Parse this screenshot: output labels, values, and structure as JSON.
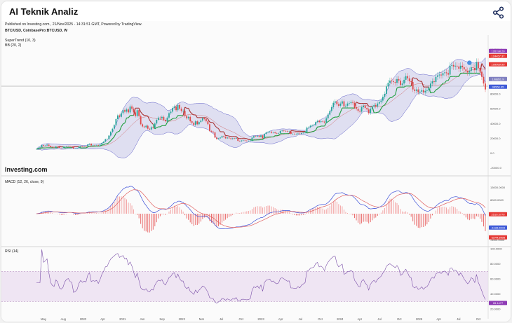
{
  "header": {
    "title": "AI Teknik Analiz",
    "share_icon": "share-icon"
  },
  "chart_meta": {
    "published": "Published on Investing.com , 21/Nov/2025 - 14:31:51 GMT, Powered by TradingView.",
    "symbol": "BTC/USD, CoinbasePro:BTCUSD, W",
    "indicator1": "SuperTrend (10, 3)",
    "indicator2": "BB (20, 2)",
    "logo": "Investing.com"
  },
  "chart_data": [
    {
      "type": "line",
      "panel": "price",
      "x_labels": [
        "May",
        "Aug",
        "2020",
        "Apr",
        "2021",
        "Jun",
        "Sep",
        "2022",
        "Mar",
        "Jul",
        "Oct",
        "2023",
        "Apr",
        "Jul",
        "Oct",
        "2024",
        "Apr",
        "Jul",
        "Oct",
        "2025",
        "Apr",
        "Jul",
        "Oct"
      ],
      "y_tick_labels": [
        "140000.0",
        "120000.0",
        "100000.0",
        "80000.0",
        "60000.0",
        "40000.0",
        "20000.0",
        "0.0",
        "-20000.0"
      ],
      "ylim": [
        -25000,
        150000
      ],
      "last_value_labels": [
        "126198.29",
        "124457.37",
        "109999.99",
        "108851.9",
        "98560.95"
      ],
      "close_weekly": [
        5600,
        7200,
        7800,
        10800,
        9800,
        10400,
        11500,
        9900,
        8200,
        7600,
        7400,
        9000,
        8600,
        7200,
        6900,
        7300,
        8700,
        9400,
        9700,
        9100,
        8900,
        6300,
        6500,
        7000,
        8600,
        9600,
        9100,
        9500,
        9300,
        11700,
        12800,
        10500,
        10900,
        10700,
        11000,
        10200,
        11600,
        13800,
        15500,
        18800,
        19100,
        23800,
        28900,
        33000,
        38000,
        46000,
        51000,
        49000,
        54000,
        58000,
        56000,
        59000,
        55000,
        63000,
        60000,
        55000,
        50000,
        58000,
        50000,
        39000,
        36000,
        35000,
        37000,
        33000,
        32000,
        35000,
        34000,
        40000,
        45000,
        48000,
        47000,
        49000,
        45000,
        43000,
        48000,
        54000,
        56000,
        61000,
        63000,
        58000,
        65000,
        60000,
        57000,
        57000,
        50000,
        47000,
        49000,
        43000,
        41000,
        38000,
        43000,
        39000,
        42000,
        44000,
        47000,
        46000,
        43000,
        39000,
        30000,
        29000,
        28000,
        21000,
        19000,
        20000,
        21000,
        23000,
        22000,
        20000,
        21000,
        20000,
        19000,
        20000,
        19500,
        20500,
        16500,
        16000,
        17000,
        17100,
        16800,
        16500,
        16600,
        17000,
        21000,
        23000,
        22500,
        23500,
        22000,
        24000,
        20000,
        26000,
        28000,
        28500,
        29000,
        27500,
        28000,
        27000,
        26500,
        27000,
        30000,
        30500,
        30000,
        29500,
        29000,
        29200,
        26000,
        26000,
        25800,
        25800,
        26500,
        26000,
        27000,
        27500,
        28000,
        34500,
        35000,
        37000,
        37500,
        38000,
        42000,
        43500,
        42000,
        43000,
        42500,
        41500,
        47000,
        52000,
        57000,
        62000,
        68000,
        70000,
        66000,
        64000,
        67000,
        70000,
        63000,
        64000,
        67000,
        67500,
        69000,
        68000,
        62000,
        60000,
        57000,
        56000,
        62000,
        64000,
        61000,
        59000,
        54000,
        60000,
        63000,
        65000,
        63000,
        67000,
        69000,
        71000,
        76000,
        80000,
        90000,
        95000,
        98000,
        97000,
        96000,
        95000,
        100000,
        98000,
        92000,
        94000,
        99000,
        104000,
        101000,
        97000,
        96000,
        86000,
        84000,
        86000,
        82000,
        83000,
        85000,
        82000,
        84000,
        85000,
        88000,
        94000,
        97000,
        96000,
        103000,
        105000,
        106000,
        105000,
        108000,
        109000,
        108000,
        106000,
        118000,
        119000,
        117000,
        118000,
        117000,
        114000,
        118000,
        116000,
        113000,
        111000,
        109000,
        111000,
        116000,
        115000,
        112000,
        123000,
        115000,
        110000,
        103000,
        94000,
        86000
      ],
      "supertrend_values": [
        null,
        null
      ],
      "series": [
        {
          "name": "SuperTrend (10, 3)"
        },
        {
          "name": "BB (20, 2)"
        }
      ]
    },
    {
      "type": "line",
      "panel": "macd",
      "title": "MACD (12, 26, close, 9)",
      "y_tick_labels": [
        "13000.0000",
        "8000.0000",
        "6000.0000",
        "-5000.0000"
      ],
      "last_value_labels": [
        "2519.3770",
        "-1138.0003",
        "-3244.8908"
      ]
    },
    {
      "type": "line",
      "panel": "rsi",
      "title": "RSI (14)",
      "y_tick_labels": [
        "100.0000",
        "80.0000",
        "60.0000",
        "40.0000",
        "20.0000"
      ],
      "band": [
        30,
        70
      ],
      "last_value_labels": [
        "28.1477"
      ]
    }
  ],
  "colors": {
    "up": "#26a69a",
    "down": "#e04848",
    "bb_fill": "#c8c8ea",
    "bb_line": "#6060c8",
    "supertrend_up": "#1f9e3d",
    "supertrend_down": "#a83232",
    "macd": "#3b4fd8",
    "signal": "#e06060",
    "rsi": "#7a4fa8",
    "rsi_band": "#eadcf0",
    "label_red": "#e53935",
    "label_blue": "#3f5bd8",
    "label_purple": "#8e3bb5"
  }
}
